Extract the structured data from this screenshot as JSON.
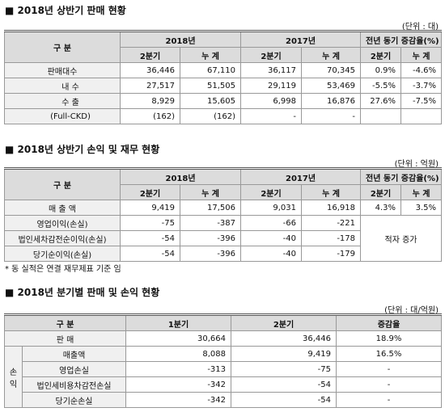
{
  "sales": {
    "title": "■ 2018년 상반기 판매 현황",
    "unit": "(단위 : 대)",
    "header": {
      "label": "구 분",
      "groups": [
        "2018년",
        "2017년",
        "전년 동기 증감율(%)"
      ],
      "sub": [
        "2분기",
        "누 계",
        "2분기",
        "누 계",
        "2분기",
        "누 계"
      ]
    },
    "rows": [
      {
        "label": "판매대수",
        "cells": [
          "36,446",
          "67,110",
          "36,117",
          "70,345",
          "0.9%",
          "-4.6%"
        ]
      },
      {
        "label": "내 수",
        "cells": [
          "27,517",
          "51,505",
          "29,119",
          "53,469",
          "-5.5%",
          "-3.7%"
        ]
      },
      {
        "label": "수 출",
        "cells": [
          "8,929",
          "15,605",
          "6,998",
          "16,876",
          "27.6%",
          "-7.5%"
        ]
      },
      {
        "label": "(Full-CKD)",
        "cells": [
          "(162)",
          "(162)",
          "-",
          "-"
        ]
      }
    ]
  },
  "income": {
    "title": "■ 2018년 상반기 손익 및 재무 현황",
    "unit": "(단위 : 억원)",
    "header": {
      "label": "구 분",
      "groups": [
        "2018년",
        "2017년",
        "전년 동기 증감율(%)"
      ],
      "sub": [
        "2분기",
        "누 계",
        "2분기",
        "누 계",
        "2분기",
        "누 계"
      ]
    },
    "rows": [
      {
        "label": "매 출 액",
        "cells": [
          "9,419",
          "17,506",
          "9,031",
          "16,918",
          "4.3%",
          "3.5%"
        ]
      },
      {
        "label": "영업이익(손실)",
        "cells": [
          "-75",
          "-387",
          "-66",
          "-221"
        ]
      },
      {
        "label": "법인세차감전순이익(손실)",
        "cells": [
          "-54",
          "-396",
          "-40",
          "-178"
        ]
      },
      {
        "label": "당기순이익(손실)",
        "cells": [
          "-54",
          "-396",
          "-40",
          "-179"
        ]
      }
    ],
    "merged_note": "적자 증가",
    "footnote": "* 동 실적은 연결 재무제표 기준 임"
  },
  "quarterly": {
    "title": "■ 2018년 분기별 판매 및 손익 현황",
    "unit": "(단위 : 대/억원)",
    "header": [
      "구 분",
      "1분기",
      "2분기",
      "증감율"
    ],
    "sales_row": {
      "label": "판 매",
      "cells": [
        "30,664",
        "36,446",
        "18.9%"
      ]
    },
    "group_label": "손익",
    "rows": [
      {
        "label": "매출액",
        "cells": [
          "8,088",
          "9,419",
          "16.5%"
        ]
      },
      {
        "label": "영업손실",
        "cells": [
          "-313",
          "-75",
          "-"
        ]
      },
      {
        "label": "법인세비용차감전손실",
        "cells": [
          "-342",
          "-54",
          "-"
        ]
      },
      {
        "label": "당기순손실",
        "cells": [
          "-342",
          "-54",
          "-"
        ]
      }
    ]
  }
}
